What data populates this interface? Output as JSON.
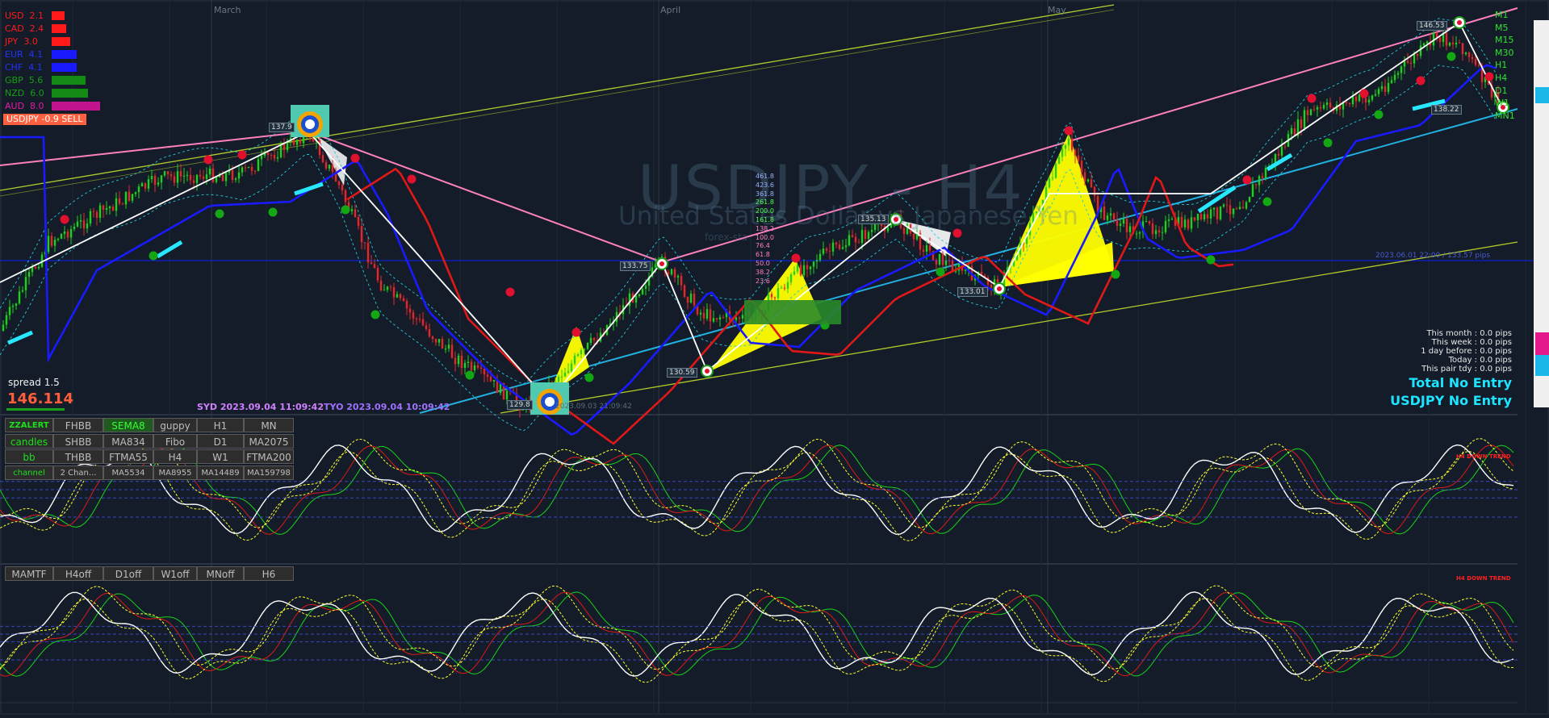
{
  "chart": {
    "symbol_title": "USDJPY - H4",
    "symbol_description": "United States Dollar vs Japanese Yen",
    "watermark_site": "forex-sta",
    "months": [
      "March",
      "April",
      "May"
    ],
    "spread_label": "spread 1.5",
    "price": "146.114",
    "session_syd": "SYD 2023.09.04 11:09:42",
    "session_tyo": "TYO 2023.09.04 10:09:42",
    "session_other": "2023.09.03 21:09:42",
    "hline_label": "2023.06.01 22:00 / 133.57 pips",
    "trend_label_1": "H4 DOWN TREND",
    "trend_label_2": "H4 DOWN TREND"
  },
  "currency_strength": [
    {
      "label": "USD  2.1",
      "value": 2.1,
      "color": "#ff1a1a",
      "text_color": "#ff1a1a"
    },
    {
      "label": "CAD  2.4",
      "value": 2.4,
      "color": "#ff1a1a",
      "text_color": "#ff1a1a"
    },
    {
      "label": "JPY  3.0",
      "value": 3.0,
      "color": "#ff1a1a",
      "text_color": "#ff1a1a"
    },
    {
      "label": "EUR  4.1",
      "value": 4.1,
      "color": "#1a1aff",
      "text_color": "#2233ff"
    },
    {
      "label": "CHF  4.1",
      "value": 4.1,
      "color": "#1a1aff",
      "text_color": "#2233ff"
    },
    {
      "label": "GBP  5.6",
      "value": 5.6,
      "color": "#138a13",
      "text_color": "#14a014"
    },
    {
      "label": "NZD  6.0",
      "value": 6.0,
      "color": "#138a13",
      "text_color": "#14a014"
    },
    {
      "label": "AUD  8.0",
      "value": 8.0,
      "color": "#c2148c",
      "text_color": "#e31aa6"
    }
  ],
  "signal_badge": "USDJPY -0.9 SELL",
  "price_labels": [
    "137.9",
    "133.75",
    "130.59",
    "129.8",
    "135.13",
    "133.01",
    "146.53",
    "138.22"
  ],
  "fib_levels": [
    "461.8",
    "423.6",
    "361.8",
    "261.8",
    "200.0",
    "161.8",
    "138.2",
    "100.0",
    "76.4",
    "61.8",
    "50.0",
    "38.2",
    "23.6"
  ],
  "stats": {
    "this_month": "This month : 0.0 pips",
    "this_week": "This week : 0.0 pips",
    "day_before": "1 day before : 0.0 pips",
    "today": "Today : 0.0 pips",
    "pair_today": "This pair tdy : 0.0 pips",
    "total_entry": "Total No Entry",
    "pair_entry": "USDJPY No Entry"
  },
  "timeframes": [
    "M1",
    "M5",
    "M15",
    "M30",
    "H1",
    "H4",
    "D1",
    "W1",
    "MN1"
  ],
  "panel_buttons": {
    "row1": [
      "ZZALERT",
      "FHBB",
      "SEMA8",
      "guppy",
      "H1",
      "MN"
    ],
    "row2": [
      "candles",
      "SHBB",
      "MA834",
      "Fibo",
      "D1",
      "MA2075"
    ],
    "row3": [
      "bb",
      "THBB",
      "FTMA55",
      "H4",
      "W1",
      "FTMA200"
    ],
    "row4": [
      "channel",
      "2 Chan...",
      "MA5534",
      "MA8955",
      "MA14489",
      "MA159798"
    ]
  },
  "mamtf_buttons": [
    "MAMTF",
    "H4off",
    "D1off",
    "W1off",
    "MNoff",
    "H6"
  ],
  "colors": {
    "background": "#131c28",
    "candle_up": "#19d419",
    "candle_down": "#e8262a",
    "zigzag": "#ffffff",
    "pink_channel": "#ff80c0",
    "yellow_channel": "#b5cc2a",
    "cyan_trend": "#22b0e0",
    "blue_ma": "#1a1aff",
    "red_ma": "#e01818",
    "harmonic": "#ffff00",
    "entry_cyan": "#00e5ff"
  }
}
